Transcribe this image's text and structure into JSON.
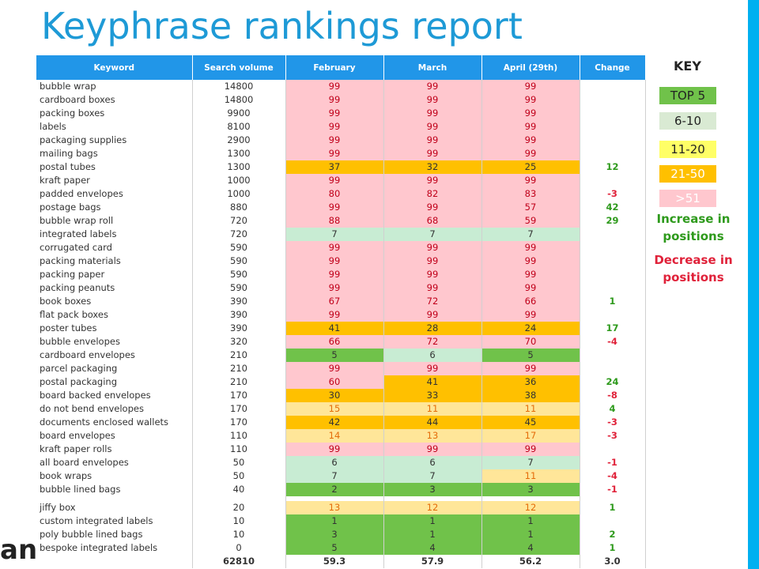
{
  "title": "Keyphrase rankings report",
  "logo_text": "an",
  "table": {
    "headers": [
      "Keyword",
      "Search volume",
      "February",
      "March",
      "April (29th)",
      "Change"
    ],
    "rows": [
      {
        "kw": "bubble wrap",
        "vol": "14800",
        "feb": "99",
        "mar": "99",
        "apr": "99",
        "chg": "",
        "cf": "51",
        "cm": "51",
        "ca": "51",
        "dir": ""
      },
      {
        "kw": "cardboard boxes",
        "vol": "14800",
        "feb": "99",
        "mar": "99",
        "apr": "99",
        "chg": "",
        "cf": "51",
        "cm": "51",
        "ca": "51",
        "dir": ""
      },
      {
        "kw": "packing boxes",
        "vol": "9900",
        "feb": "99",
        "mar": "99",
        "apr": "99",
        "chg": "",
        "cf": "51",
        "cm": "51",
        "ca": "51",
        "dir": ""
      },
      {
        "kw": "labels",
        "vol": "8100",
        "feb": "99",
        "mar": "99",
        "apr": "99",
        "chg": "",
        "cf": "51",
        "cm": "51",
        "ca": "51",
        "dir": ""
      },
      {
        "kw": "packaging supplies",
        "vol": "2900",
        "feb": "99",
        "mar": "99",
        "apr": "99",
        "chg": "",
        "cf": "51",
        "cm": "51",
        "ca": "51",
        "dir": ""
      },
      {
        "kw": "mailing bags",
        "vol": "1300",
        "feb": "99",
        "mar": "99",
        "apr": "99",
        "chg": "",
        "cf": "51",
        "cm": "51",
        "ca": "51",
        "dir": ""
      },
      {
        "kw": "postal tubes",
        "vol": "1300",
        "feb": "37",
        "mar": "32",
        "apr": "25",
        "chg": "12",
        "cf": "2150",
        "cm": "2150",
        "ca": "2150",
        "dir": "up"
      },
      {
        "kw": "kraft paper",
        "vol": "1000",
        "feb": "99",
        "mar": "99",
        "apr": "99",
        "chg": "",
        "cf": "51",
        "cm": "51",
        "ca": "51",
        "dir": ""
      },
      {
        "kw": "padded envelopes",
        "vol": "1000",
        "feb": "80",
        "mar": "82",
        "apr": "83",
        "chg": "-3",
        "cf": "51",
        "cm": "51",
        "ca": "51",
        "dir": "down"
      },
      {
        "kw": "postage bags",
        "vol": "880",
        "feb": "99",
        "mar": "99",
        "apr": "57",
        "chg": "42",
        "cf": "51",
        "cm": "51",
        "ca": "51",
        "dir": "up"
      },
      {
        "kw": "bubble wrap roll",
        "vol": "720",
        "feb": "88",
        "mar": "68",
        "apr": "59",
        "chg": "29",
        "cf": "51",
        "cm": "51",
        "ca": "51",
        "dir": "up"
      },
      {
        "kw": "integrated labels",
        "vol": "720",
        "feb": "7",
        "mar": "7",
        "apr": "7",
        "chg": "",
        "cf": "610",
        "cm": "610",
        "ca": "610",
        "dir": ""
      },
      {
        "kw": "corrugated card",
        "vol": "590",
        "feb": "99",
        "mar": "99",
        "apr": "99",
        "chg": "",
        "cf": "51",
        "cm": "51",
        "ca": "51",
        "dir": ""
      },
      {
        "kw": "packing materials",
        "vol": "590",
        "feb": "99",
        "mar": "99",
        "apr": "99",
        "chg": "",
        "cf": "51",
        "cm": "51",
        "ca": "51",
        "dir": ""
      },
      {
        "kw": "packing paper",
        "vol": "590",
        "feb": "99",
        "mar": "99",
        "apr": "99",
        "chg": "",
        "cf": "51",
        "cm": "51",
        "ca": "51",
        "dir": ""
      },
      {
        "kw": "packing peanuts",
        "vol": "590",
        "feb": "99",
        "mar": "99",
        "apr": "99",
        "chg": "",
        "cf": "51",
        "cm": "51",
        "ca": "51",
        "dir": ""
      },
      {
        "kw": "book boxes",
        "vol": "390",
        "feb": "67",
        "mar": "72",
        "apr": "66",
        "chg": "1",
        "cf": "51",
        "cm": "51",
        "ca": "51",
        "dir": "up"
      },
      {
        "kw": "flat pack boxes",
        "vol": "390",
        "feb": "99",
        "mar": "99",
        "apr": "99",
        "chg": "",
        "cf": "51",
        "cm": "51",
        "ca": "51",
        "dir": ""
      },
      {
        "kw": "poster tubes",
        "vol": "390",
        "feb": "41",
        "mar": "28",
        "apr": "24",
        "chg": "17",
        "cf": "2150",
        "cm": "2150",
        "ca": "2150",
        "dir": "up"
      },
      {
        "kw": "bubble envelopes",
        "vol": "320",
        "feb": "66",
        "mar": "72",
        "apr": "70",
        "chg": "-4",
        "cf": "51",
        "cm": "51",
        "ca": "51",
        "dir": "down"
      },
      {
        "kw": "cardboard envelopes",
        "vol": "210",
        "feb": "5",
        "mar": "6",
        "apr": "5",
        "chg": "",
        "cf": "top5",
        "cm": "610",
        "ca": "top5",
        "dir": ""
      },
      {
        "kw": "parcel packaging",
        "vol": "210",
        "feb": "99",
        "mar": "99",
        "apr": "99",
        "chg": "",
        "cf": "51",
        "cm": "51",
        "ca": "51",
        "dir": ""
      },
      {
        "kw": "postal packaging",
        "vol": "210",
        "feb": "60",
        "mar": "41",
        "apr": "36",
        "chg": "24",
        "cf": "51",
        "cm": "2150",
        "ca": "2150",
        "dir": "up"
      },
      {
        "kw": "board backed envelopes",
        "vol": "170",
        "feb": "30",
        "mar": "33",
        "apr": "38",
        "chg": "-8",
        "cf": "2150",
        "cm": "2150",
        "ca": "2150",
        "dir": "down"
      },
      {
        "kw": "do not bend envelopes",
        "vol": "170",
        "feb": "15",
        "mar": "11",
        "apr": "11",
        "chg": "4",
        "cf": "1120",
        "cm": "1120",
        "ca": "1120",
        "dir": "up"
      },
      {
        "kw": "documents enclosed wallets",
        "vol": "170",
        "feb": "42",
        "mar": "44",
        "apr": "45",
        "chg": "-3",
        "cf": "2150",
        "cm": "2150",
        "ca": "2150",
        "dir": "down"
      },
      {
        "kw": "board envelopes",
        "vol": "110",
        "feb": "14",
        "mar": "13",
        "apr": "17",
        "chg": "-3",
        "cf": "1120",
        "cm": "1120",
        "ca": "1120",
        "dir": "down"
      },
      {
        "kw": "kraft paper rolls",
        "vol": "110",
        "feb": "99",
        "mar": "99",
        "apr": "99",
        "chg": "",
        "cf": "51",
        "cm": "51",
        "ca": "51",
        "dir": ""
      },
      {
        "kw": "all board envelopes",
        "vol": "50",
        "feb": "6",
        "mar": "6",
        "apr": "7",
        "chg": "-1",
        "cf": "610",
        "cm": "610",
        "ca": "610",
        "dir": "down"
      },
      {
        "kw": "book wraps",
        "vol": "50",
        "feb": "7",
        "mar": "7",
        "apr": "11",
        "chg": "-4",
        "cf": "610",
        "cm": "610",
        "ca": "1120",
        "dir": "down"
      },
      {
        "kw": "bubble lined bags",
        "vol": "40",
        "feb": "2",
        "mar": "3",
        "apr": "3",
        "chg": "-1",
        "cf": "top5",
        "cm": "top5",
        "ca": "top5",
        "dir": "down"
      },
      {
        "kw": "jiffy box",
        "vol": "20",
        "feb": "13",
        "mar": "12",
        "apr": "12",
        "chg": "1",
        "cf": "1120",
        "cm": "1120",
        "ca": "1120",
        "dir": "up"
      },
      {
        "kw": "custom integrated labels",
        "vol": "10",
        "feb": "1",
        "mar": "1",
        "apr": "1",
        "chg": "",
        "cf": "top5",
        "cm": "top5",
        "ca": "top5",
        "dir": ""
      },
      {
        "kw": "poly bubble lined bags",
        "vol": "10",
        "feb": "3",
        "mar": "1",
        "apr": "1",
        "chg": "2",
        "cf": "top5",
        "cm": "top5",
        "ca": "top5",
        "dir": "up"
      },
      {
        "kw": "bespoke integrated labels",
        "vol": "0",
        "feb": "5",
        "mar": "4",
        "apr": "4",
        "chg": "1",
        "cf": "top5",
        "cm": "top5",
        "ca": "top5",
        "dir": "up"
      }
    ],
    "blank_after": [
      30
    ],
    "totals": {
      "kw": "",
      "vol": "62810",
      "feb": "59.3",
      "mar": "57.9",
      "apr": "56.2",
      "chg": "3.0"
    }
  },
  "key": {
    "title": "KEY",
    "top5": "TOP 5",
    "r610": "6-10",
    "r1120": "11-20",
    "r2150": "21-50",
    "r51": ">51",
    "increase": "Increase in positions",
    "decrease": "Decrease in positions"
  },
  "colors": {
    "header_bg": "#2196e8",
    "title": "#1e9ad6",
    "top5": "#70c24a",
    "r610": "#c8ecd3",
    "r1120": "#ffe699",
    "r2150": "#ffc000",
    "r51": "#ffc7ce",
    "increase": "#2e9a1c",
    "decrease": "#e0223a"
  }
}
